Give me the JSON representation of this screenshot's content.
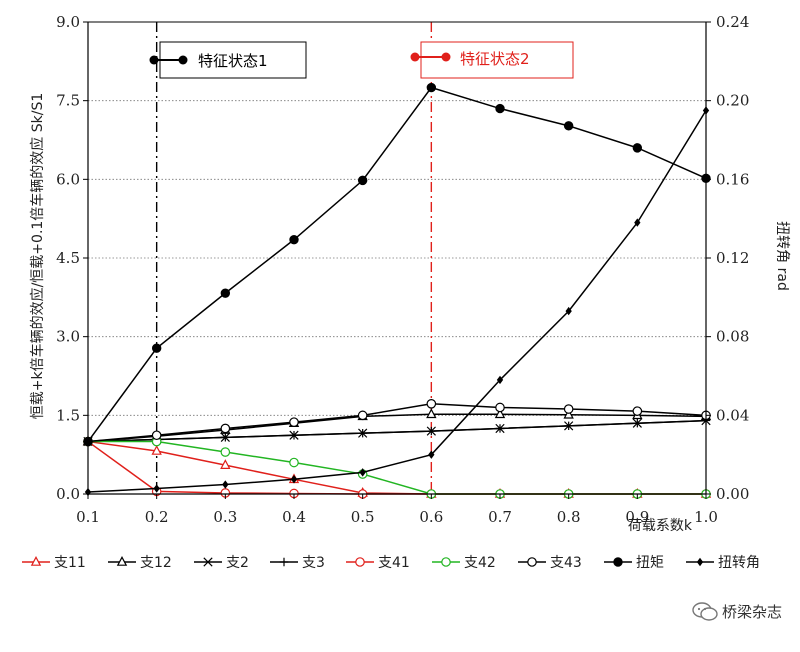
{
  "chart_data": {
    "type": "line",
    "ylabel_left": "恒载+k倍车辆的效应/恒载+0.1倍车辆的效应 Sk/S1",
    "ylabel_right": "扭转角 rad",
    "xlabel": "荷载系数k",
    "xlim": [
      0.1,
      1.0
    ],
    "ylim_left": [
      0.0,
      9.0
    ],
    "ylim_right": [
      0.0,
      0.24
    ],
    "x_ticks": [
      "0.1",
      "0.2",
      "0.3",
      "0.4",
      "0.5",
      "0.6",
      "0.7",
      "0.8",
      "0.9",
      "1.0"
    ],
    "y_left_ticks": [
      "0.0",
      "1.5",
      "3.0",
      "4.5",
      "6.0",
      "7.5",
      "9.0"
    ],
    "y_right_ticks": [
      "0.00",
      "0.04",
      "0.08",
      "0.12",
      "0.16",
      "0.20",
      "0.24"
    ],
    "grid": "horizontal dotted",
    "legend_placement": "bottom",
    "x": [
      0.1,
      0.2,
      0.3,
      0.4,
      0.5,
      0.6,
      0.7,
      0.8,
      0.9,
      1.0
    ],
    "series": [
      {
        "name": "支11",
        "color": "#e0201b",
        "marker": "triangle-open",
        "axis": "left",
        "values": [
          1.0,
          0.82,
          0.55,
          0.28,
          0.02,
          0.0,
          0.0,
          0.0,
          0.0,
          0.0
        ]
      },
      {
        "name": "支12",
        "color": "#000000",
        "marker": "triangle-open",
        "axis": "left",
        "values": [
          1.0,
          1.1,
          1.22,
          1.35,
          1.48,
          1.52,
          1.52,
          1.51,
          1.5,
          1.48
        ]
      },
      {
        "name": "支2",
        "color": "#000000",
        "marker": "x",
        "axis": "left",
        "values": [
          1.0,
          1.04,
          1.08,
          1.12,
          1.16,
          1.2,
          1.25,
          1.3,
          1.35,
          1.4
        ]
      },
      {
        "name": "支3",
        "color": "#000000",
        "marker": "plus",
        "axis": "left",
        "values": [
          1.0,
          1.04,
          1.08,
          1.12,
          1.16,
          1.2,
          1.25,
          1.3,
          1.35,
          1.4
        ]
      },
      {
        "name": "支41",
        "color": "#e0201b",
        "marker": "circle-open",
        "axis": "left",
        "values": [
          1.0,
          0.05,
          0.02,
          0.01,
          0.0,
          0.0,
          0.0,
          0.0,
          0.0,
          0.0
        ]
      },
      {
        "name": "支42",
        "color": "#22b522",
        "marker": "circle-open",
        "axis": "left",
        "values": [
          1.0,
          1.0,
          0.8,
          0.6,
          0.38,
          0.0,
          0.0,
          0.0,
          0.0,
          0.0
        ]
      },
      {
        "name": "支43",
        "color": "#000000",
        "marker": "circle-open",
        "axis": "left",
        "values": [
          1.0,
          1.12,
          1.25,
          1.37,
          1.5,
          1.72,
          1.65,
          1.62,
          1.58,
          1.5
        ]
      },
      {
        "name": "扭矩",
        "color": "#000000",
        "marker": "circle-filled",
        "axis": "left",
        "values": [
          1.0,
          2.78,
          3.83,
          4.85,
          5.98,
          7.75,
          7.35,
          7.02,
          6.6,
          6.02
        ]
      },
      {
        "name": "扭转角",
        "color": "#000000",
        "marker": "diamond-filled",
        "axis": "right",
        "values": [
          0.001,
          0.0028,
          0.0048,
          0.0075,
          0.011,
          0.02,
          0.058,
          0.093,
          0.138,
          0.195
        ]
      }
    ],
    "annotations": [
      {
        "label": "特征状态1",
        "x": 0.2,
        "color": "#000000"
      },
      {
        "label": "特征状态2",
        "x": 0.6,
        "color": "#e0201b"
      }
    ]
  },
  "watermark": {
    "icon": "wechat-icon",
    "text": "桥梁杂志"
  }
}
